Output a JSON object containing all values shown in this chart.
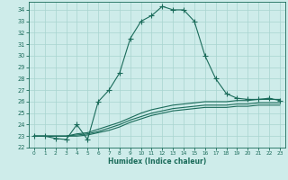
{
  "xlabel": "Humidex (Indice chaleur)",
  "bg_color": "#ceecea",
  "line_color": "#1a6b5a",
  "grid_color": "#a8d4d0",
  "xlim": [
    -0.5,
    23.5
  ],
  "ylim": [
    22,
    34.7
  ],
  "yticks": [
    22,
    23,
    24,
    25,
    26,
    27,
    28,
    29,
    30,
    31,
    32,
    33,
    34
  ],
  "xticks": [
    0,
    1,
    2,
    3,
    4,
    5,
    6,
    7,
    8,
    9,
    10,
    11,
    12,
    13,
    14,
    15,
    16,
    17,
    18,
    19,
    20,
    21,
    22,
    23
  ],
  "main_x": [
    0,
    1,
    2,
    3,
    4,
    5,
    6,
    7,
    8,
    9,
    10,
    11,
    12,
    13,
    14,
    15,
    16,
    17,
    18,
    19,
    20,
    21,
    22,
    23
  ],
  "main_y": [
    23,
    23,
    22.8,
    22.7,
    24,
    22.7,
    26,
    27,
    28.5,
    31.5,
    33,
    33.5,
    34.3,
    34,
    34,
    33,
    30,
    28,
    26.7,
    26.3,
    26.2,
    26.2,
    26.3,
    26.1
  ],
  "line2_x": [
    0,
    1,
    2,
    3,
    4,
    5,
    6,
    7,
    8,
    9,
    10,
    11,
    12,
    13,
    14,
    15,
    16,
    17,
    18,
    19,
    20,
    21,
    22,
    23
  ],
  "line2_y": [
    23,
    23,
    23,
    23,
    23.2,
    23.3,
    23.6,
    23.9,
    24.2,
    24.6,
    25.0,
    25.3,
    25.5,
    25.7,
    25.8,
    25.9,
    26.0,
    26.0,
    26.0,
    26.1,
    26.1,
    26.2,
    26.2,
    26.2
  ],
  "line3_x": [
    0,
    1,
    2,
    3,
    4,
    5,
    6,
    7,
    8,
    9,
    10,
    11,
    12,
    13,
    14,
    15,
    16,
    17,
    18,
    19,
    20,
    21,
    22,
    23
  ],
  "line3_y": [
    23,
    23,
    23,
    23,
    23.1,
    23.2,
    23.4,
    23.7,
    24.0,
    24.4,
    24.7,
    25.0,
    25.2,
    25.4,
    25.5,
    25.6,
    25.7,
    25.7,
    25.7,
    25.8,
    25.8,
    25.9,
    25.9,
    25.9
  ],
  "line4_x": [
    0,
    1,
    2,
    3,
    4,
    5,
    6,
    7,
    8,
    9,
    10,
    11,
    12,
    13,
    14,
    15,
    16,
    17,
    18,
    19,
    20,
    21,
    22,
    23
  ],
  "line4_y": [
    23,
    23,
    23,
    23,
    23.0,
    23.1,
    23.3,
    23.5,
    23.8,
    24.2,
    24.5,
    24.8,
    25.0,
    25.2,
    25.3,
    25.4,
    25.5,
    25.5,
    25.5,
    25.6,
    25.6,
    25.7,
    25.7,
    25.7
  ]
}
